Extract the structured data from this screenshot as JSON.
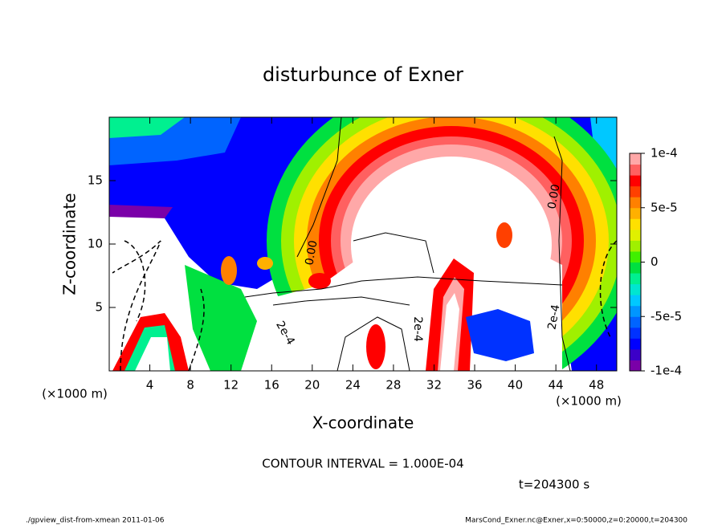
{
  "chart_data": {
    "type": "contour",
    "title": "disturbunce of Exner",
    "x_label": "X-coordinate",
    "y_label": "Z-coordinate",
    "x_unit": "(×1000 m)",
    "y_unit": "(×1000 m)",
    "xlim": [
      0,
      50
    ],
    "xticks": [
      4,
      8,
      12,
      16,
      20,
      24,
      28,
      32,
      36,
      40,
      44,
      48
    ],
    "ylim": [
      0,
      20
    ],
    "yticks": [
      5,
      10,
      15
    ],
    "colorbar": {
      "lim": [
        -0.0001,
        0.0001
      ],
      "ticks": [
        {
          "value": 0.0001,
          "label": "1e-4"
        },
        {
          "value": 5e-05,
          "label": "5e-5"
        },
        0,
        {
          "value": -5e-05,
          "label": "-5e-5"
        },
        {
          "value": -0.0001,
          "label": "-1e-4"
        }
      ],
      "colors": [
        "#7a00a8",
        "#3c00c8",
        "#0000ff",
        "#0032ff",
        "#0064ff",
        "#0096ff",
        "#00c8ff",
        "#00e6d0",
        "#00f090",
        "#00e040",
        "#40f000",
        "#a0f000",
        "#e0f000",
        "#ffe000",
        "#ffb000",
        "#ff8000",
        "#ff4000",
        "#ff0000",
        "#ff6060",
        "#ffa8a8"
      ]
    },
    "contour_labels": [
      "0.00",
      "0.00",
      "2e-4",
      "2e-4",
      "2e-4"
    ],
    "contour_interval": "CONTOUR INTERVAL = 1.000E-04",
    "time": "t=204300 s"
  },
  "footer": {
    "left": "./gpview_dist-from-xmean  2011-01-06",
    "right": "MarsCond_Exner.nc@Exner,x=0:50000,z=0:20000,t=204300"
  }
}
